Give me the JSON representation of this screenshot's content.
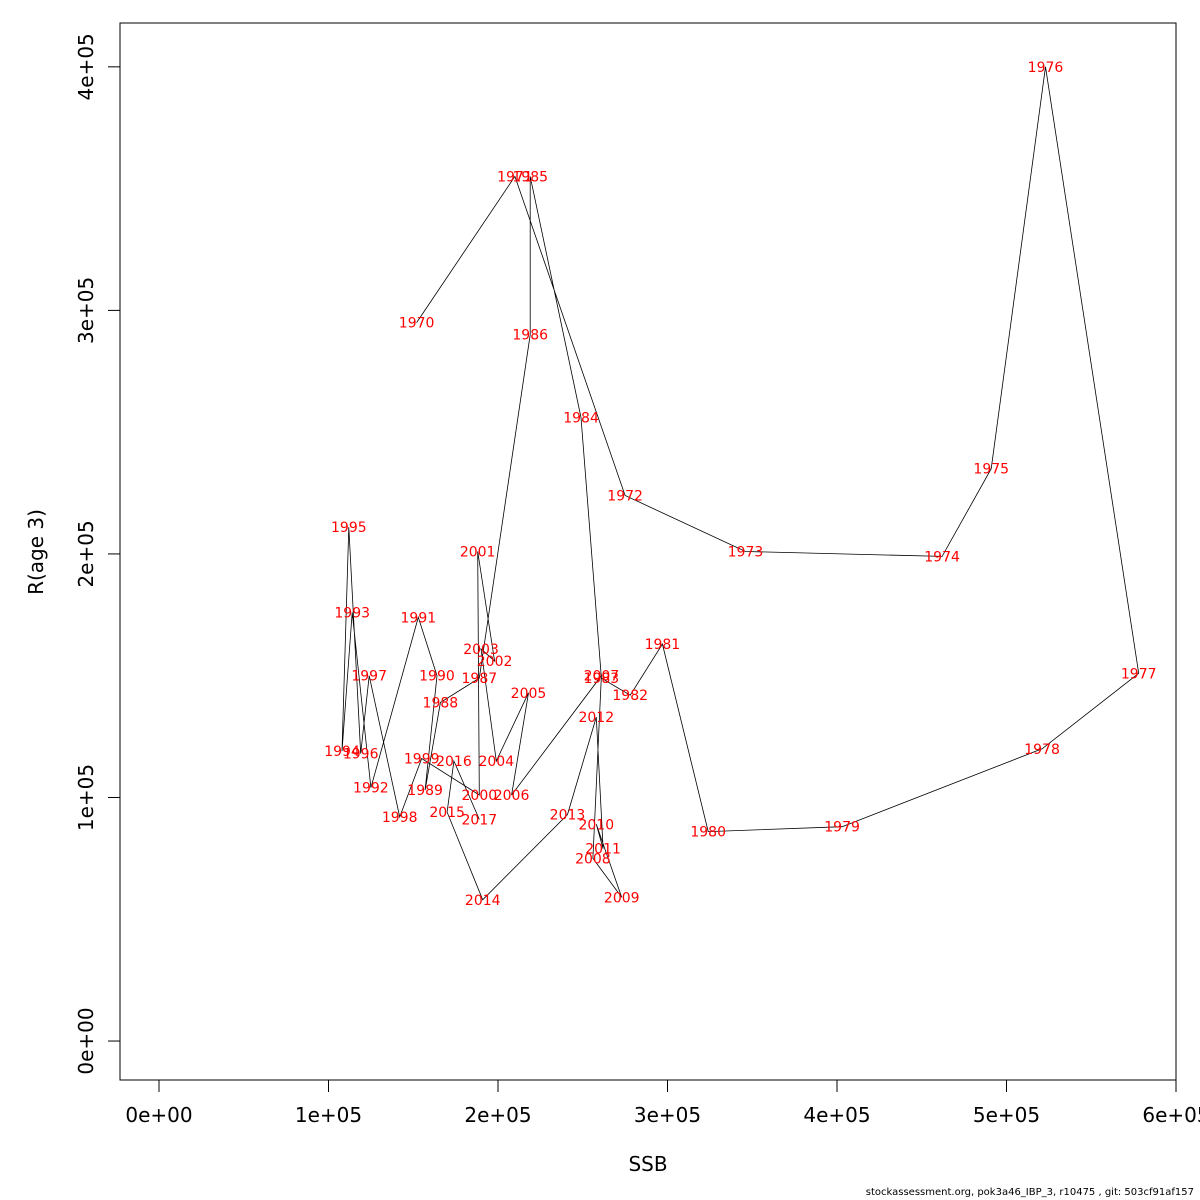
{
  "chart_data": {
    "type": "line",
    "xlabel": "SSB",
    "ylabel": "R(age 3)",
    "xlim": [
      -23000,
      600000
    ],
    "ylim": [
      -16000,
      418000
    ],
    "x_ticks": [
      0,
      100000,
      200000,
      300000,
      400000,
      500000,
      600000
    ],
    "x_tick_labels": [
      "0e+00",
      "1e+05",
      "2e+05",
      "3e+05",
      "4e+05",
      "5e+05",
      "6e+05"
    ],
    "y_ticks": [
      0,
      100000,
      200000,
      300000,
      400000
    ],
    "y_tick_labels": [
      "0e+00",
      "1e+05",
      "2e+05",
      "3e+05",
      "4e+05"
    ],
    "label_color": "#ff0000",
    "line_color": "#000000",
    "points": [
      {
        "year": "1970",
        "x": 152000,
        "y": 295000
      },
      {
        "year": "1971",
        "x": 210000,
        "y": 355000
      },
      {
        "year": "1972",
        "x": 275000,
        "y": 224000
      },
      {
        "year": "1973",
        "x": 346000,
        "y": 201000
      },
      {
        "year": "1974",
        "x": 462000,
        "y": 199000
      },
      {
        "year": "1975",
        "x": 491000,
        "y": 235000
      },
      {
        "year": "1976",
        "x": 523000,
        "y": 400000
      },
      {
        "year": "1977",
        "x": 578000,
        "y": 151000
      },
      {
        "year": "1978",
        "x": 521000,
        "y": 120000
      },
      {
        "year": "1979",
        "x": 403000,
        "y": 88000
      },
      {
        "year": "1980",
        "x": 324000,
        "y": 86000
      },
      {
        "year": "1981",
        "x": 297000,
        "y": 163000
      },
      {
        "year": "1982",
        "x": 278000,
        "y": 142000
      },
      {
        "year": "1983",
        "x": 261000,
        "y": 149000
      },
      {
        "year": "1984",
        "x": 249000,
        "y": 256000
      },
      {
        "year": "1985",
        "x": 219000,
        "y": 355000
      },
      {
        "year": "1986",
        "x": 219000,
        "y": 290000
      },
      {
        "year": "1987",
        "x": 189000,
        "y": 149000
      },
      {
        "year": "1988",
        "x": 166000,
        "y": 139000
      },
      {
        "year": "1989",
        "x": 157000,
        "y": 103000
      },
      {
        "year": "1990",
        "x": 164000,
        "y": 150000
      },
      {
        "year": "1991",
        "x": 153000,
        "y": 174000
      },
      {
        "year": "1992",
        "x": 125000,
        "y": 104000
      },
      {
        "year": "1993",
        "x": 114000,
        "y": 176000
      },
      {
        "year": "1994",
        "x": 108000,
        "y": 119000
      },
      {
        "year": "1995",
        "x": 112000,
        "y": 211000
      },
      {
        "year": "1996",
        "x": 119000,
        "y": 118000
      },
      {
        "year": "1997",
        "x": 124000,
        "y": 150000
      },
      {
        "year": "1998",
        "x": 142000,
        "y": 92000
      },
      {
        "year": "1999",
        "x": 155000,
        "y": 116000
      },
      {
        "year": "2000",
        "x": 189000,
        "y": 101000
      },
      {
        "year": "2001",
        "x": 188000,
        "y": 201000
      },
      {
        "year": "2002",
        "x": 198000,
        "y": 156000
      },
      {
        "year": "2003",
        "x": 190000,
        "y": 161000
      },
      {
        "year": "2004",
        "x": 199000,
        "y": 115000
      },
      {
        "year": "2005",
        "x": 218000,
        "y": 143000
      },
      {
        "year": "2006",
        "x": 208000,
        "y": 101000
      },
      {
        "year": "2007",
        "x": 261000,
        "y": 150000
      },
      {
        "year": "2008",
        "x": 256000,
        "y": 75000
      },
      {
        "year": "2009",
        "x": 273000,
        "y": 59000
      },
      {
        "year": "2010",
        "x": 258000,
        "y": 89000
      },
      {
        "year": "2011",
        "x": 262000,
        "y": 79000
      },
      {
        "year": "2012",
        "x": 258000,
        "y": 133000
      },
      {
        "year": "2013",
        "x": 241000,
        "y": 93000
      },
      {
        "year": "2014",
        "x": 191000,
        "y": 58000
      },
      {
        "year": "2015",
        "x": 170000,
        "y": 94000
      },
      {
        "year": "2016",
        "x": 174000,
        "y": 115000
      },
      {
        "year": "2017",
        "x": 189000,
        "y": 91000
      }
    ]
  },
  "footer_text": "stockassessment.org, pok3a46_IBP_3, r10475 , git: 503cf91af157"
}
